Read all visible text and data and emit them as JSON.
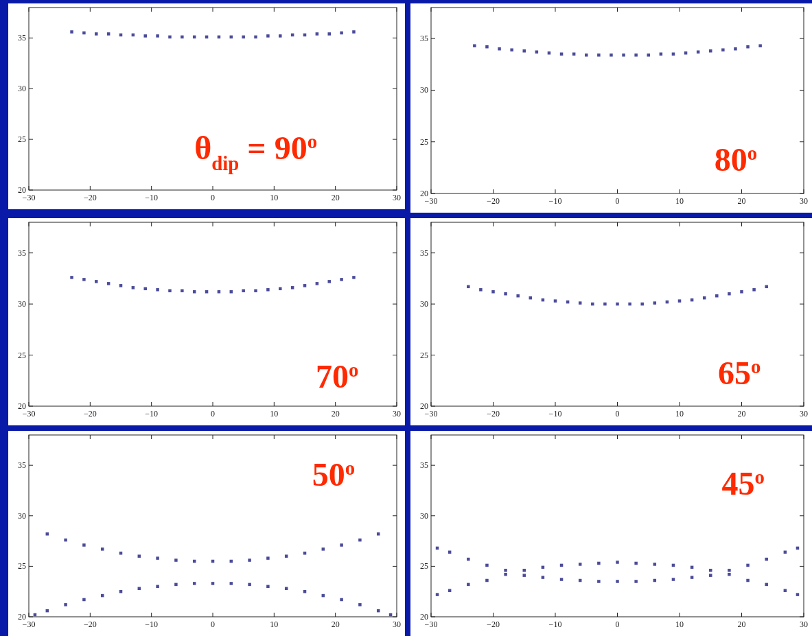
{
  "chart_data": [
    {
      "type": "scatter",
      "marker": "square",
      "xlim": [
        -30,
        30
      ],
      "ylim": [
        20,
        38
      ],
      "xticks": [
        -30,
        -20,
        -10,
        0,
        10,
        20,
        30
      ],
      "yticks": [
        20,
        25,
        30,
        35
      ],
      "annotations": [
        "θ$_{dip}$ = 90$^{o}$"
      ],
      "series": [
        {
          "color": "#4b4b9b",
          "x": [
            -23,
            -21,
            -19,
            -17,
            -15,
            -13,
            -11,
            -9,
            -7,
            -5,
            -3,
            -1,
            1,
            3,
            5,
            7,
            9,
            11,
            13,
            15,
            17,
            19,
            21,
            23
          ],
          "values": [
            35.6,
            35.5,
            35.4,
            35.4,
            35.3,
            35.3,
            35.2,
            35.2,
            35.1,
            35.1,
            35.1,
            35.1,
            35.1,
            35.1,
            35.1,
            35.1,
            35.2,
            35.2,
            35.3,
            35.3,
            35.4,
            35.4,
            35.5,
            35.6
          ]
        }
      ]
    },
    {
      "type": "scatter",
      "marker": "square",
      "xlim": [
        -30,
        30
      ],
      "ylim": [
        20,
        38
      ],
      "xticks": [
        -30,
        -20,
        -10,
        0,
        10,
        20,
        30
      ],
      "yticks": [
        20,
        25,
        30,
        35
      ],
      "annotations": [
        "80$^{o}$"
      ],
      "series": [
        {
          "color": "#4b4b9b",
          "x": [
            -23,
            -21,
            -19,
            -17,
            -15,
            -13,
            -11,
            -9,
            -7,
            -5,
            -3,
            -1,
            1,
            3,
            5,
            7,
            9,
            11,
            13,
            15,
            17,
            19,
            21,
            23
          ],
          "values": [
            34.3,
            34.2,
            34.0,
            33.9,
            33.8,
            33.7,
            33.6,
            33.5,
            33.5,
            33.4,
            33.4,
            33.4,
            33.4,
            33.4,
            33.4,
            33.5,
            33.5,
            33.6,
            33.7,
            33.8,
            33.9,
            34.0,
            34.2,
            34.3
          ]
        }
      ]
    },
    {
      "type": "scatter",
      "marker": "square",
      "xlim": [
        -30,
        30
      ],
      "ylim": [
        20,
        38
      ],
      "xticks": [
        -30,
        -20,
        -10,
        0,
        10,
        20,
        30
      ],
      "yticks": [
        20,
        25,
        30,
        35
      ],
      "annotations": [
        "70$^{o}$"
      ],
      "series": [
        {
          "color": "#4b4b9b",
          "x": [
            -23,
            -21,
            -19,
            -17,
            -15,
            -13,
            -11,
            -9,
            -7,
            -5,
            -3,
            -1,
            1,
            3,
            5,
            7,
            9,
            11,
            13,
            15,
            17,
            19,
            21,
            23
          ],
          "values": [
            32.6,
            32.4,
            32.2,
            32.0,
            31.8,
            31.6,
            31.5,
            31.4,
            31.3,
            31.3,
            31.2,
            31.2,
            31.2,
            31.2,
            31.3,
            31.3,
            31.4,
            31.5,
            31.6,
            31.8,
            32.0,
            32.2,
            32.4,
            32.6
          ]
        }
      ]
    },
    {
      "type": "scatter",
      "marker": "square",
      "xlim": [
        -30,
        30
      ],
      "ylim": [
        20,
        38
      ],
      "xticks": [
        -30,
        -20,
        -10,
        0,
        10,
        20,
        30
      ],
      "yticks": [
        20,
        25,
        30,
        35
      ],
      "annotations": [
        "65$^{o}$"
      ],
      "series": [
        {
          "color": "#4b4b9b",
          "x": [
            -24,
            -22,
            -20,
            -18,
            -16,
            -14,
            -12,
            -10,
            -8,
            -6,
            -4,
            -2,
            0,
            2,
            4,
            6,
            8,
            10,
            12,
            14,
            16,
            18,
            20,
            22,
            24
          ],
          "values": [
            31.7,
            31.4,
            31.2,
            31.0,
            30.8,
            30.6,
            30.4,
            30.3,
            30.2,
            30.1,
            30.0,
            30.0,
            30.0,
            30.0,
            30.0,
            30.1,
            30.2,
            30.3,
            30.4,
            30.6,
            30.8,
            31.0,
            31.2,
            31.4,
            31.7
          ]
        }
      ]
    },
    {
      "type": "scatter",
      "marker": "square",
      "xlim": [
        -30,
        30
      ],
      "ylim": [
        20,
        38
      ],
      "xticks": [
        -30,
        -20,
        -10,
        0,
        10,
        20,
        30
      ],
      "yticks": [
        20,
        25,
        30,
        35
      ],
      "annotations": [
        "50$^{o}$"
      ],
      "series": [
        {
          "color": "#4b4b9b",
          "x": [
            -27,
            -24,
            -21,
            -18,
            -15,
            -12,
            -9,
            -6,
            -3,
            0,
            3,
            6,
            9,
            12,
            15,
            18,
            21,
            24,
            27
          ],
          "values": [
            28.2,
            27.6,
            27.1,
            26.7,
            26.3,
            26.0,
            25.8,
            25.6,
            25.5,
            25.5,
            25.5,
            25.6,
            25.8,
            26.0,
            26.3,
            26.7,
            27.1,
            27.6,
            28.2
          ]
        },
        {
          "color": "#4b4b9b",
          "x": [
            -29,
            -27,
            -24,
            -21,
            -18,
            -15,
            -12,
            -9,
            -6,
            -3,
            0,
            3,
            6,
            9,
            12,
            15,
            18,
            21,
            24,
            27,
            29
          ],
          "values": [
            20.2,
            20.6,
            21.2,
            21.7,
            22.1,
            22.5,
            22.8,
            23.0,
            23.2,
            23.3,
            23.3,
            23.3,
            23.2,
            23.0,
            22.8,
            22.5,
            22.1,
            21.7,
            21.2,
            20.6,
            20.2
          ]
        }
      ]
    },
    {
      "type": "scatter",
      "marker": "square",
      "xlim": [
        -30,
        30
      ],
      "ylim": [
        20,
        38
      ],
      "xticks": [
        -30,
        -20,
        -10,
        0,
        10,
        20,
        30
      ],
      "yticks": [
        20,
        25,
        30,
        35
      ],
      "annotations": [
        "45$^{o}$"
      ],
      "series": [
        {
          "color": "#4b4b9b",
          "x": [
            -29,
            -27,
            -24,
            -21,
            -18,
            -15,
            -12,
            -9,
            -6,
            -3,
            0,
            3,
            6,
            9,
            12,
            15,
            18,
            21,
            24,
            27,
            29
          ],
          "values": [
            26.8,
            26.4,
            25.7,
            25.1,
            24.6,
            24.1,
            23.9,
            23.7,
            23.6,
            23.5,
            23.5,
            23.5,
            23.6,
            23.7,
            23.9,
            24.1,
            24.6,
            25.1,
            25.7,
            26.4,
            26.8
          ]
        },
        {
          "color": "#4b4b9b",
          "x": [
            -29,
            -27,
            -24,
            -21,
            -18,
            -15,
            -12,
            -9,
            -6,
            -3,
            0,
            3,
            6,
            9,
            12,
            15,
            18,
            21,
            24,
            27,
            29
          ],
          "values": [
            22.2,
            22.6,
            23.2,
            23.6,
            24.2,
            24.6,
            24.9,
            25.1,
            25.2,
            25.3,
            25.4,
            25.3,
            25.2,
            25.1,
            24.9,
            24.6,
            24.2,
            23.6,
            23.2,
            22.6,
            22.2
          ]
        }
      ]
    }
  ]
}
